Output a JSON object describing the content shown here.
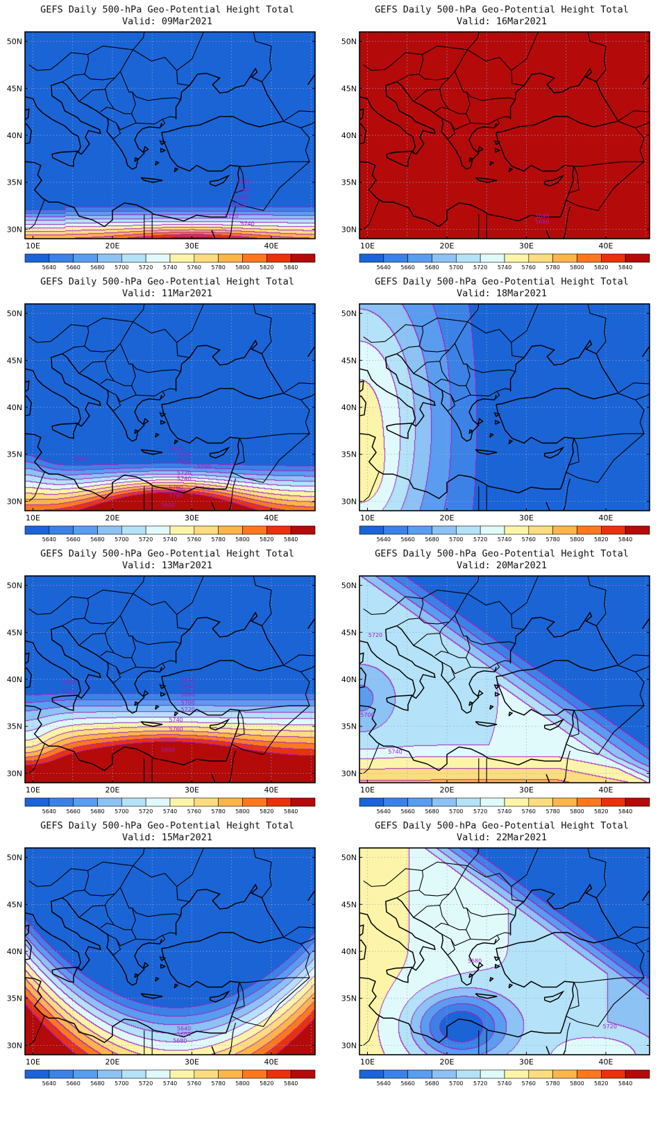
{
  "title_line1": "GEFS Daily 500-hPa Geo-Potential Height Total",
  "lat_labels": [
    "50N",
    "45N",
    "40N",
    "35N",
    "30N"
  ],
  "lon_labels": [
    "10E",
    "20E",
    "30E",
    "40E"
  ],
  "colorbar": {
    "labels": [
      "5640",
      "5660",
      "5680",
      "5700",
      "5720",
      "5740",
      "5760",
      "5780",
      "5800",
      "5820",
      "5840"
    ],
    "colors": [
      "#1a64d6",
      "#3c82e6",
      "#5a9cf0",
      "#8cc2f4",
      "#b4e2f8",
      "#e0fafc",
      "#fcf4a8",
      "#fcdc80",
      "#fcb44c",
      "#fc7820",
      "#e8320e",
      "#b40a0a"
    ]
  },
  "contour_color": "#a020c0",
  "coast_color": "#000000",
  "panels": [
    {
      "id": "p1",
      "valid": "Valid: 09Mar2021",
      "contour_labels": [
        "5640",
        "5660",
        "5680",
        "5700",
        "5720",
        "5740"
      ]
    },
    {
      "id": "p2",
      "valid": "Valid: 16Mar2021",
      "contour_labels": [
        "5640",
        "5660"
      ]
    },
    {
      "id": "p3",
      "valid": "Valid: 11Mar2021",
      "contour_labels": [
        "5640",
        "5660",
        "5660",
        "5680",
        "5700",
        "5720",
        "5740",
        "5760",
        "5780",
        "5800"
      ]
    },
    {
      "id": "p4",
      "valid": "Valid: 18Mar2021",
      "contour_labels": []
    },
    {
      "id": "p5",
      "valid": "Valid: 13Mar2021",
      "contour_labels": [
        "5640",
        "5640",
        "5660",
        "5660",
        "5680",
        "5700",
        "5720",
        "5740",
        "5760",
        "5780",
        "5800"
      ]
    },
    {
      "id": "p6",
      "valid": "Valid: 20Mar2021",
      "contour_labels": [
        "5720",
        "5700",
        "5740"
      ]
    },
    {
      "id": "p7",
      "valid": "Valid: 15Mar2021",
      "contour_labels": [
        "5640",
        "5660",
        "5680"
      ]
    },
    {
      "id": "p8",
      "valid": "Valid: 22Mar2021",
      "contour_labels": [
        "5680",
        "5720"
      ]
    }
  ]
}
